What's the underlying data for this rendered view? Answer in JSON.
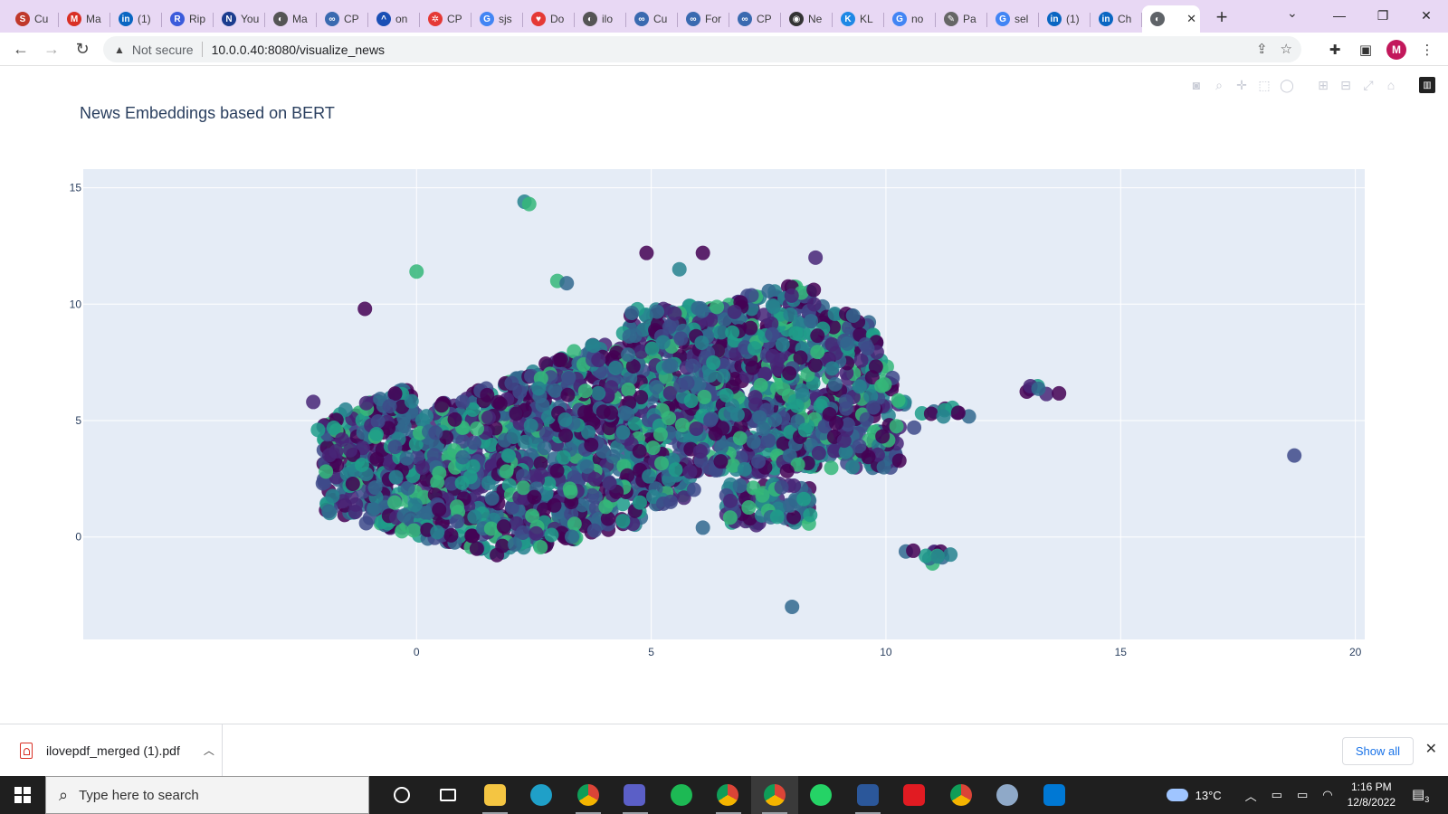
{
  "browser": {
    "tabs": [
      {
        "title": "Cu",
        "fav_color": "#c0392b",
        "fav_glyph": "S"
      },
      {
        "title": "Ma",
        "fav_color": "#d93025",
        "fav_glyph": "M"
      },
      {
        "title": "(1)",
        "fav_color": "#0a66c2",
        "fav_glyph": "in"
      },
      {
        "title": "Rip",
        "fav_color": "#3b5bdb",
        "fav_glyph": "R"
      },
      {
        "title": "You",
        "fav_color": "#1c3d8f",
        "fav_glyph": "N"
      },
      {
        "title": "Ma",
        "fav_color": "#555555",
        "fav_glyph": "◐"
      },
      {
        "title": "CP",
        "fav_color": "#3a6ab0",
        "fav_glyph": "∞"
      },
      {
        "title": "on",
        "fav_color": "#1a4fb5",
        "fav_glyph": "^"
      },
      {
        "title": "CP",
        "fav_color": "#e53935",
        "fav_glyph": "✲"
      },
      {
        "title": "sjs",
        "fav_color": "#4285f4",
        "fav_glyph": "G"
      },
      {
        "title": "Do",
        "fav_color": "#e53935",
        "fav_glyph": "♥"
      },
      {
        "title": "ilo",
        "fav_color": "#555555",
        "fav_glyph": "◐"
      },
      {
        "title": "Cu",
        "fav_color": "#3a6ab0",
        "fav_glyph": "∞"
      },
      {
        "title": "For",
        "fav_color": "#3a6ab0",
        "fav_glyph": "∞"
      },
      {
        "title": "CP",
        "fav_color": "#3a6ab0",
        "fav_glyph": "∞"
      },
      {
        "title": "Ne",
        "fav_color": "#333333",
        "fav_glyph": "◉"
      },
      {
        "title": "KL",
        "fav_color": "#1e88e5",
        "fav_glyph": "K"
      },
      {
        "title": "no",
        "fav_color": "#4285f4",
        "fav_glyph": "G"
      },
      {
        "title": "Pa",
        "fav_color": "#666666",
        "fav_glyph": "✎"
      },
      {
        "title": "sel",
        "fav_color": "#4285f4",
        "fav_glyph": "G"
      },
      {
        "title": "(1)",
        "fav_color": "#0a66c2",
        "fav_glyph": "in"
      },
      {
        "title": "Ch",
        "fav_color": "#0a66c2",
        "fav_glyph": "in"
      }
    ],
    "active_tab": {
      "fav_color": "#5f6368",
      "fav_glyph": "◐"
    },
    "security_label": "Not secure",
    "url": "10.0.0.40:8080/visualize_news",
    "profile_initial": "M"
  },
  "plot": {
    "title": "News Embeddings based on BERT"
  },
  "chart_data": {
    "type": "scatter",
    "title": "News Embeddings based on BERT",
    "xlabel": "",
    "ylabel": "",
    "xlim": [
      -7.1,
      20.2
    ],
    "ylim": [
      -4.4,
      15.8
    ],
    "xticks": [
      0,
      5,
      10,
      15,
      20
    ],
    "yticks": [
      0,
      5,
      10,
      15
    ],
    "grid": true,
    "legend": "none",
    "background": "#e5ecf6",
    "colorscale": [
      "#440154",
      "#482677",
      "#3e4a89",
      "#31688e",
      "#26828e",
      "#1f9e89",
      "#35b779"
    ],
    "outliers": [
      {
        "x": 2.3,
        "y": 14.4
      },
      {
        "x": 2.4,
        "y": 14.3
      },
      {
        "x": 0.0,
        "y": 11.4
      },
      {
        "x": -1.1,
        "y": 9.8
      },
      {
        "x": 3.0,
        "y": 11.0
      },
      {
        "x": 3.2,
        "y": 10.9
      },
      {
        "x": 4.9,
        "y": 12.2
      },
      {
        "x": 6.1,
        "y": 12.2
      },
      {
        "x": 5.6,
        "y": 11.5
      },
      {
        "x": 8.5,
        "y": 12.0
      },
      {
        "x": 8.0,
        "y": -3.0
      },
      {
        "x": 18.7,
        "y": 3.5
      },
      {
        "x": -2.2,
        "y": 5.8
      },
      {
        "x": -2.1,
        "y": 4.6
      },
      {
        "x": 10.6,
        "y": 4.7
      },
      {
        "x": 6.1,
        "y": 0.4
      }
    ],
    "clusters": [
      {
        "cx": 11.3,
        "cy": 5.35,
        "sx": 0.35,
        "sy": 0.12,
        "n": 10
      },
      {
        "cx": 13.2,
        "cy": 6.3,
        "sx": 0.25,
        "sy": 0.12,
        "n": 7
      },
      {
        "cx": 11.0,
        "cy": -0.8,
        "sx": 0.3,
        "sy": 0.2,
        "n": 12
      }
    ]
  },
  "downloads": {
    "file_name": "ilovepdf_merged (1).pdf",
    "show_all_label": "Show all"
  },
  "taskbar": {
    "search_placeholder": "Type here to search",
    "temperature": "13°C",
    "time": "1:16 PM",
    "date": "12/8/2022",
    "notification_count": "3"
  }
}
